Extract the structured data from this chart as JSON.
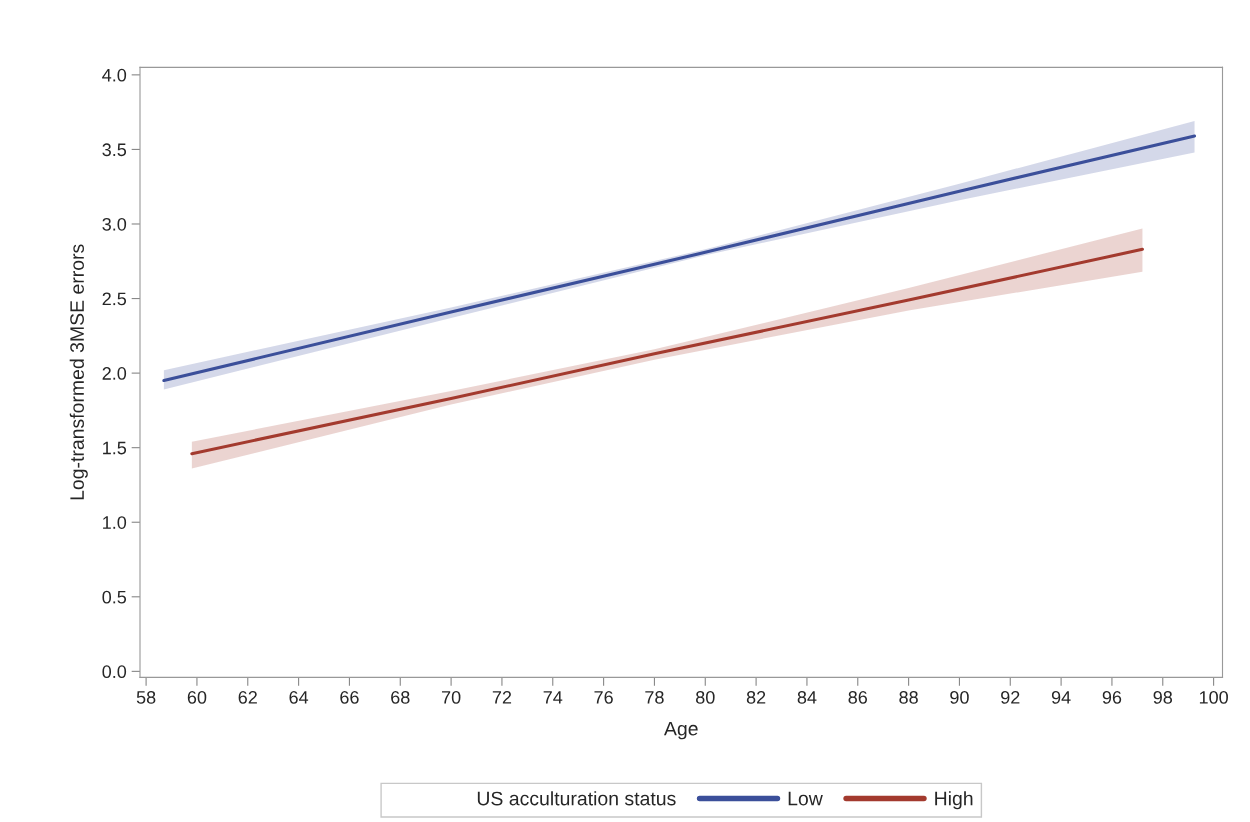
{
  "chart_data": {
    "type": "line",
    "xlabel": "Age",
    "ylabel": "Log-transformed 3MSE errors",
    "legend_title": "US acculturation status",
    "series": [
      {
        "name": "Low",
        "color": "#3b4f9a",
        "x": [
          58.7,
          70,
          80,
          90,
          99.25
        ],
        "values": [
          1.95,
          2.41,
          2.81,
          3.22,
          3.59
        ],
        "lower": [
          1.89,
          2.37,
          2.79,
          3.16,
          3.48
        ],
        "upper": [
          2.02,
          2.44,
          2.83,
          3.27,
          3.69
        ]
      },
      {
        "name": "High",
        "color": "#a33a2e",
        "x": [
          59.8,
          70,
          78,
          88,
          97.2
        ],
        "values": [
          1.46,
          1.83,
          2.13,
          2.49,
          2.83
        ],
        "lower": [
          1.36,
          1.79,
          2.09,
          2.42,
          2.68
        ],
        "upper": [
          1.54,
          1.88,
          2.16,
          2.57,
          2.97
        ]
      }
    ],
    "xlim": [
      57.76,
      100.35
    ],
    "xticks": [
      58,
      60,
      62,
      64,
      66,
      68,
      70,
      72,
      74,
      76,
      78,
      80,
      82,
      84,
      86,
      88,
      90,
      92,
      94,
      96,
      98,
      100
    ],
    "ylim": [
      -0.04,
      4.05
    ],
    "yticks": [
      {
        "value": 0,
        "label": "0.0"
      },
      {
        "value": 0.5,
        "label": "0.5"
      },
      {
        "value": 1,
        "label": "1.0"
      },
      {
        "value": 1.5,
        "label": "1.5"
      },
      {
        "value": 2,
        "label": "2.0"
      },
      {
        "value": 2.5,
        "label": "2.5"
      },
      {
        "value": 3,
        "label": "3.0"
      },
      {
        "value": 3.5,
        "label": "3.5"
      },
      {
        "value": 4,
        "label": "4.0"
      }
    ],
    "grid": false,
    "legend": "bottom",
    "marker": "none",
    "line_style": "solid"
  }
}
